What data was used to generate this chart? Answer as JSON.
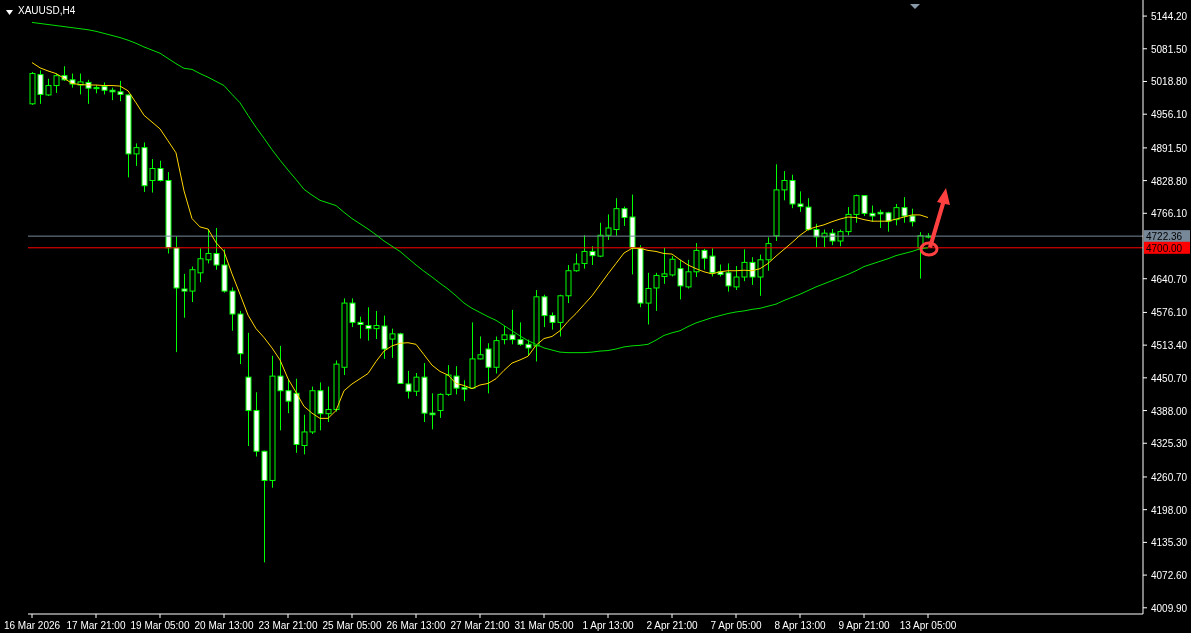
{
  "chart_data": {
    "type": "candlestick",
    "title": "XAUUSD,H4",
    "categories": [
      "16 Mar 2026",
      null,
      null,
      null,
      null,
      null,
      null,
      null,
      "17 Mar 21:00",
      null,
      null,
      null,
      null,
      null,
      null,
      null,
      "19 Mar 05:00",
      null,
      null,
      null,
      null,
      null,
      null,
      null,
      "20 Mar 13:00",
      null,
      null,
      null,
      null,
      null,
      null,
      null,
      "23 Mar 21:00",
      null,
      null,
      null,
      null,
      null,
      null,
      null,
      "25 Mar 05:00",
      null,
      null,
      null,
      null,
      null,
      null,
      null,
      "26 Mar 13:00",
      null,
      null,
      null,
      null,
      null,
      null,
      null,
      "27 Mar 21:00",
      null,
      null,
      null,
      null,
      null,
      null,
      null,
      "31 Mar 05:00",
      null,
      null,
      null,
      null,
      null,
      null,
      null,
      "1 Apr 13:00",
      null,
      null,
      null,
      null,
      null,
      null,
      null,
      "2 Apr 21:00",
      null,
      null,
      null,
      null,
      null,
      null,
      null,
      "7 Apr 05:00",
      null,
      null,
      null,
      null,
      null,
      null,
      null,
      "8 Apr 13:00",
      null,
      null,
      null,
      null,
      null,
      null,
      null,
      "9 Apr 21:00",
      null,
      null,
      null,
      null,
      null,
      null,
      null,
      "13 Apr 05:00"
    ],
    "color": "#00ff00",
    "ohlc": [
      [
        4976,
        5037,
        4974,
        5034
      ],
      [
        5032,
        5040,
        4976,
        4994
      ],
      [
        4993,
        5024,
        4991,
        5011
      ],
      [
        5011,
        5034,
        4997,
        5030
      ],
      [
        5030,
        5048,
        5020,
        5022
      ],
      [
        5022,
        5034,
        5007,
        5014
      ],
      [
        5012,
        5034,
        4994,
        5018
      ],
      [
        5017,
        5022,
        4976,
        5006
      ],
      [
        5007,
        5012,
        4996,
        5006
      ],
      [
        5009,
        5017,
        4994,
        5002
      ],
      [
        5002,
        5007,
        4983,
        4999
      ],
      [
        4999,
        5020,
        4981,
        4994
      ],
      [
        4993,
        4994,
        4835,
        4880
      ],
      [
        4880,
        4900,
        4857,
        4892
      ],
      [
        4892,
        4902,
        4807,
        4819
      ],
      [
        4829,
        4870,
        4806,
        4852
      ],
      [
        4852,
        4867,
        4827,
        4829
      ],
      [
        4829,
        4845,
        4689,
        4700
      ],
      [
        4700,
        4722,
        4500,
        4623
      ],
      [
        4621,
        4650,
        4566,
        4617
      ],
      [
        4617,
        4664,
        4596,
        4658
      ],
      [
        4652,
        4699,
        4634,
        4679
      ],
      [
        4677,
        4736,
        4670,
        4689
      ],
      [
        4689,
        4738,
        4658,
        4667
      ],
      [
        4667,
        4697,
        4614,
        4617
      ],
      [
        4617,
        4624,
        4541,
        4573
      ],
      [
        4573,
        4579,
        4477,
        4497
      ],
      [
        4452,
        4537,
        4320,
        4388
      ],
      [
        4388,
        4423,
        4300,
        4310
      ],
      [
        4310,
        4311,
        4097,
        4254
      ],
      [
        4254,
        4493,
        4240,
        4454
      ],
      [
        4454,
        4512,
        4350,
        4426
      ],
      [
        4426,
        4449,
        4383,
        4406
      ],
      [
        4421,
        4449,
        4307,
        4323
      ],
      [
        4321,
        4380,
        4304,
        4347
      ],
      [
        4347,
        4434,
        4343,
        4426
      ],
      [
        4426,
        4442,
        4350,
        4382
      ],
      [
        4382,
        4434,
        4366,
        4390
      ],
      [
        4390,
        4484,
        4386,
        4477
      ],
      [
        4471,
        4603,
        4456,
        4594
      ],
      [
        4594,
        4603,
        4548,
        4557
      ],
      [
        4557,
        4568,
        4526,
        4553
      ],
      [
        4551,
        4586,
        4522,
        4545
      ],
      [
        4545,
        4579,
        4525,
        4551
      ],
      [
        4550,
        4570,
        4487,
        4506
      ],
      [
        4525,
        4545,
        4489,
        4535
      ],
      [
        4535,
        4537,
        4439,
        4440
      ],
      [
        4439,
        4464,
        4411,
        4425
      ],
      [
        4425,
        4460,
        4416,
        4452
      ],
      [
        4452,
        4479,
        4366,
        4383
      ],
      [
        4383,
        4421,
        4352,
        4380
      ],
      [
        4388,
        4421,
        4374,
        4419
      ],
      [
        4419,
        4475,
        4416,
        4456
      ],
      [
        4454,
        4473,
        4419,
        4431
      ],
      [
        4432,
        4446,
        4406,
        4429
      ],
      [
        4431,
        4557,
        4430,
        4487
      ],
      [
        4487,
        4530,
        4486,
        4495
      ],
      [
        4506,
        4517,
        4421,
        4471
      ],
      [
        4471,
        4530,
        4459,
        4522
      ],
      [
        4524,
        4550,
        4515,
        4533
      ],
      [
        4533,
        4581,
        4515,
        4524
      ],
      [
        4524,
        4557,
        4512,
        4515
      ],
      [
        4515,
        4524,
        4493,
        4508
      ],
      [
        4512,
        4619,
        4482,
        4606
      ],
      [
        4606,
        4610,
        4548,
        4570
      ],
      [
        4570,
        4576,
        4543,
        4557
      ],
      [
        4557,
        4610,
        4530,
        4608
      ],
      [
        4608,
        4667,
        4594,
        4656
      ],
      [
        4656,
        4689,
        4654,
        4669
      ],
      [
        4670,
        4724,
        4660,
        4693
      ],
      [
        4693,
        4703,
        4667,
        4685
      ],
      [
        4684,
        4748,
        4682,
        4724
      ],
      [
        4724,
        4764,
        4715,
        4738
      ],
      [
        4735,
        4795,
        4723,
        4775
      ],
      [
        4775,
        4779,
        4742,
        4758
      ],
      [
        4759,
        4802,
        4649,
        4700
      ],
      [
        4699,
        4705,
        4586,
        4594
      ],
      [
        4594,
        4652,
        4553,
        4622
      ],
      [
        4623,
        4652,
        4579,
        4647
      ],
      [
        4645,
        4700,
        4631,
        4650
      ],
      [
        4648,
        4684,
        4645,
        4678
      ],
      [
        4660,
        4677,
        4601,
        4627
      ],
      [
        4625,
        4677,
        4622,
        4654
      ],
      [
        4654,
        4709,
        4644,
        4695
      ],
      [
        4695,
        4698,
        4658,
        4680
      ],
      [
        4684,
        4699,
        4645,
        4652
      ],
      [
        4654,
        4668,
        4645,
        4649
      ],
      [
        4652,
        4670,
        4616,
        4627
      ],
      [
        4625,
        4665,
        4619,
        4644
      ],
      [
        4644,
        4697,
        4636,
        4672
      ],
      [
        4672,
        4682,
        4629,
        4644
      ],
      [
        4644,
        4687,
        4608,
        4677
      ],
      [
        4677,
        4720,
        4656,
        4708
      ],
      [
        4723,
        4860,
        4713,
        4811
      ],
      [
        4811,
        4847,
        4791,
        4829
      ],
      [
        4829,
        4840,
        4776,
        4784
      ],
      [
        4784,
        4808,
        4769,
        4779
      ],
      [
        4778,
        4795,
        4733,
        4735
      ],
      [
        4735,
        4746,
        4701,
        4721
      ],
      [
        4721,
        4735,
        4701,
        4728
      ],
      [
        4728,
        4736,
        4705,
        4713
      ],
      [
        4713,
        4735,
        4703,
        4731
      ],
      [
        4731,
        4778,
        4724,
        4764
      ],
      [
        4764,
        4802,
        4748,
        4800
      ],
      [
        4800,
        4801,
        4761,
        4766
      ],
      [
        4766,
        4781,
        4750,
        4761
      ],
      [
        4768,
        4773,
        4738,
        4765
      ],
      [
        4767,
        4769,
        4731,
        4751
      ],
      [
        4754,
        4784,
        4743,
        4777
      ],
      [
        4777,
        4797,
        4748,
        4761
      ],
      [
        4761,
        4775,
        4741,
        4750
      ],
      [
        4700,
        4730,
        4641,
        4723
      ],
      [
        4721,
        4728,
        4718,
        4722.36
      ]
    ],
    "series": [
      {
        "type": "line",
        "color": "#ffd700",
        "values": [
          5055,
          5045,
          5039,
          5034,
          5025,
          5015,
          5013,
          5012,
          5012,
          5011,
          5011,
          5010,
          5001,
          4978,
          4954,
          4941,
          4928,
          4905,
          4882,
          4809,
          4756,
          4740,
          4736,
          4710,
          4693,
          4650,
          4611,
          4571,
          4545,
          4528,
          4508,
          4485,
          4449,
          4423,
          4396,
          4383,
          4373,
          4373,
          4388,
          4426,
          4439,
          4449,
          4459,
          4482,
          4502,
          4512,
          4517,
          4518,
          4515,
          4495,
          4475,
          4463,
          4456,
          4440,
          4436,
          4430,
          4437,
          4440,
          4449,
          4465,
          4479,
          4485,
          4492,
          4513,
          4526,
          4530,
          4541,
          4559,
          4574,
          4591,
          4608,
          4629,
          4650,
          4670,
          4690,
          4699,
          4699,
          4695,
          4693,
          4689,
          4688,
          4677,
          4667,
          4660,
          4654,
          4650,
          4654,
          4656,
          4656,
          4657,
          4656,
          4660,
          4670,
          4684,
          4697,
          4710,
          4724,
          4735,
          4740,
          4744,
          4750,
          4755,
          4759,
          4758,
          4754,
          4751,
          4751,
          4751,
          4755,
          4759,
          4763,
          4763,
          4758
        ]
      },
      {
        "type": "line",
        "color": "#00e000",
        "values": [
          5132,
          5130,
          5128,
          5126,
          5124,
          5122,
          5120,
          5118,
          5115,
          5111,
          5107,
          5103,
          5098,
          5092,
          5085,
          5079,
          5073,
          5063,
          5053,
          5044,
          5042,
          5034,
          5027,
          5019,
          5011,
          4994,
          4978,
          4954,
          4931,
          4910,
          4888,
          4868,
          4849,
          4831,
          4812,
          4801,
          4791,
          4786,
          4781,
          4768,
          4756,
          4746,
          4736,
          4725,
          4713,
          4703,
          4693,
          4680,
          4667,
          4655,
          4644,
          4632,
          4621,
          4608,
          4594,
          4584,
          4576,
          4568,
          4561,
          4551,
          4541,
          4531,
          4522,
          4515,
          4508,
          4504,
          4500,
          4499,
          4499,
          4499,
          4500,
          4502,
          4503,
          4506,
          4510,
          4512,
          4513,
          4515,
          4523,
          4532,
          4537,
          4541,
          4549,
          4556,
          4561,
          4566,
          4570,
          4574,
          4577,
          4579,
          4582,
          4584,
          4588,
          4592,
          4599,
          4605,
          4611,
          4618,
          4625,
          4631,
          4637,
          4643,
          4649,
          4656,
          4664,
          4669,
          4674,
          4679,
          4685,
          4689,
          4693,
          4698,
          4700
        ]
      }
    ],
    "ylim": [
      3998,
      5175
    ],
    "yticks": [
      {
        "value": 4009.9,
        "label": "4009.90"
      },
      {
        "value": 4072.6,
        "label": "4072.60"
      },
      {
        "value": 4135.3,
        "label": "4135.30"
      },
      {
        "value": 4198,
        "label": "4198.00"
      },
      {
        "value": 4260.7,
        "label": "4260.70"
      },
      {
        "value": 4325.3,
        "label": "4325.30"
      },
      {
        "value": 4388,
        "label": "4388.00"
      },
      {
        "value": 4450.7,
        "label": "4450.70"
      },
      {
        "value": 4513.4,
        "label": "4513.40"
      },
      {
        "value": 4576.1,
        "label": "4576.10"
      },
      {
        "value": 4640.7,
        "label": "4640.70"
      },
      {
        "value": 4766.1,
        "label": "4766.10"
      },
      {
        "value": 4828.8,
        "label": "4828.80"
      },
      {
        "value": 4891.5,
        "label": "4891.50"
      },
      {
        "value": 4956.1,
        "label": "4956.10"
      },
      {
        "value": 5018.8,
        "label": "5018.80"
      },
      {
        "value": 5081.5,
        "label": "5081.50"
      },
      {
        "value": 5144.2,
        "label": "5144.20"
      }
    ],
    "ref_lines": [
      {
        "axis": "y",
        "value": 4722.36,
        "label": "4722.36",
        "color": "#778899"
      },
      {
        "axis": "y",
        "value": 4700,
        "label": "4700.00",
        "color": "#ff0000"
      }
    ]
  }
}
